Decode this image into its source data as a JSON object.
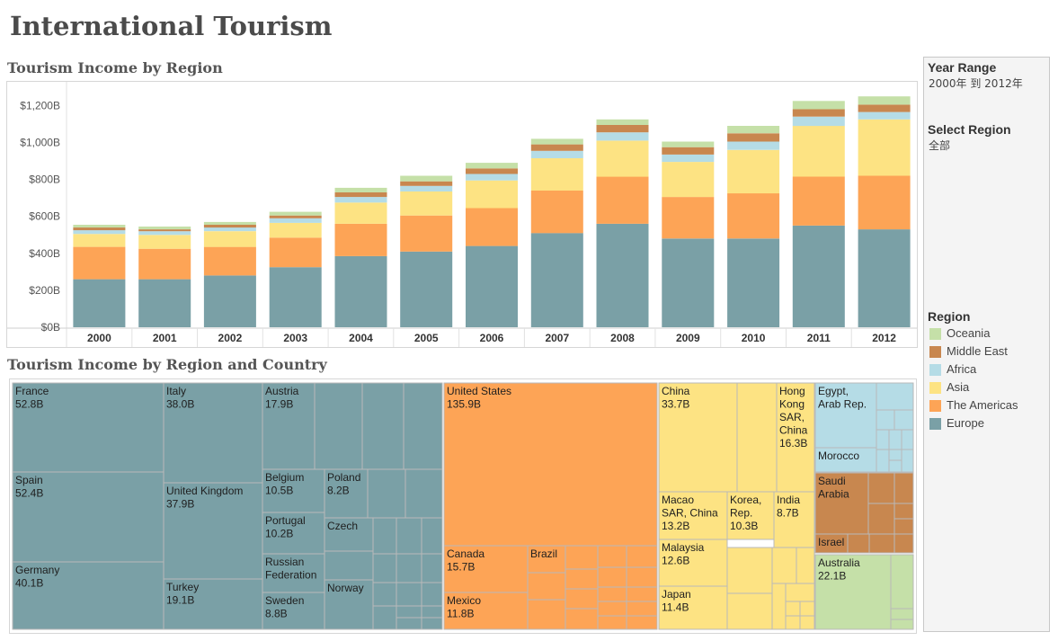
{
  "title": "International Tourism",
  "bar_section_title": "Tourism Income by Region",
  "tree_section_title": "Tourism Income by Region and Country",
  "filters": {
    "year_range_label": "Year Range",
    "year_range_value": "2000年 到 2012年",
    "region_label": "Select Region",
    "region_value": "全部"
  },
  "legend": {
    "title": "Region",
    "items": [
      {
        "label": "Oceania",
        "color": "#c5e0a8"
      },
      {
        "label": "Middle East",
        "color": "#c8874f"
      },
      {
        "label": "Africa",
        "color": "#b5dce6"
      },
      {
        "label": "Asia",
        "color": "#fde383"
      },
      {
        "label": "The Americas",
        "color": "#fda456"
      },
      {
        "label": "Europe",
        "color": "#7aa0a6"
      }
    ]
  },
  "chart_data": [
    {
      "type": "bar",
      "title": "Tourism Income by Region",
      "stacked": true,
      "categories": [
        "2000",
        "2001",
        "2002",
        "2003",
        "2004",
        "2005",
        "2006",
        "2007",
        "2008",
        "2009",
        "2010",
        "2011",
        "2012"
      ],
      "y_ticks": [
        "$0B",
        "$200B",
        "$400B",
        "$600B",
        "$800B",
        "$1,000B",
        "$1,200B"
      ],
      "ylim": [
        0,
        1280
      ],
      "series": [
        {
          "name": "Europe",
          "color": "#7aa0a6",
          "values": [
            260,
            260,
            280,
            325,
            385,
            410,
            440,
            510,
            560,
            480,
            480,
            550,
            530
          ]
        },
        {
          "name": "The Americas",
          "color": "#fda456",
          "values": [
            175,
            165,
            155,
            160,
            175,
            195,
            205,
            230,
            255,
            225,
            245,
            265,
            290
          ]
        },
        {
          "name": "Asia",
          "color": "#fde383",
          "values": [
            70,
            75,
            85,
            80,
            115,
            130,
            150,
            175,
            195,
            190,
            235,
            275,
            305
          ]
        },
        {
          "name": "Africa",
          "color": "#b5dce6",
          "values": [
            20,
            20,
            20,
            25,
            30,
            30,
            35,
            40,
            45,
            40,
            45,
            50,
            40
          ]
        },
        {
          "name": "Middle East",
          "color": "#c8874f",
          "values": [
            15,
            10,
            15,
            15,
            25,
            25,
            30,
            35,
            40,
            40,
            45,
            40,
            40
          ]
        },
        {
          "name": "Oceania",
          "color": "#c5e0a8",
          "values": [
            15,
            15,
            15,
            20,
            25,
            30,
            30,
            30,
            30,
            30,
            40,
            45,
            45
          ]
        }
      ]
    },
    {
      "type": "treemap",
      "title": "Tourism Income by Region and Country",
      "labeled_cells": [
        {
          "region": "Europe",
          "name": "France",
          "value": "52.8B"
        },
        {
          "region": "Europe",
          "name": "Spain",
          "value": "52.4B"
        },
        {
          "region": "Europe",
          "name": "Germany",
          "value": "40.1B"
        },
        {
          "region": "Europe",
          "name": "Italy",
          "value": "38.0B"
        },
        {
          "region": "Europe",
          "name": "United Kingdom",
          "value": "37.9B"
        },
        {
          "region": "Europe",
          "name": "Turkey",
          "value": "19.1B"
        },
        {
          "region": "Europe",
          "name": "Austria",
          "value": "17.9B"
        },
        {
          "region": "Europe",
          "name": "Belgium",
          "value": "10.5B"
        },
        {
          "region": "Europe",
          "name": "Portugal",
          "value": "10.2B"
        },
        {
          "region": "Europe",
          "name": "Russian Federation",
          "value": ""
        },
        {
          "region": "Europe",
          "name": "Sweden",
          "value": "8.8B"
        },
        {
          "region": "Europe",
          "name": "Poland",
          "value": "8.2B"
        },
        {
          "region": "Europe",
          "name": "Czech",
          "value": ""
        },
        {
          "region": "Europe",
          "name": "Norway",
          "value": ""
        },
        {
          "region": "The Americas",
          "name": "United States",
          "value": "135.9B"
        },
        {
          "region": "The Americas",
          "name": "Canada",
          "value": "15.7B"
        },
        {
          "region": "The Americas",
          "name": "Brazil",
          "value": ""
        },
        {
          "region": "The Americas",
          "name": "Mexico",
          "value": "11.8B"
        },
        {
          "region": "Asia",
          "name": "China",
          "value": "33.7B"
        },
        {
          "region": "Asia",
          "name": "Hong Kong SAR, China",
          "value": "16.3B"
        },
        {
          "region": "Asia",
          "name": "Macao SAR, China",
          "value": "13.2B"
        },
        {
          "region": "Asia",
          "name": "Korea, Rep.",
          "value": "10.3B"
        },
        {
          "region": "Asia",
          "name": "India",
          "value": "8.7B"
        },
        {
          "region": "Asia",
          "name": "Malaysia",
          "value": "12.6B"
        },
        {
          "region": "Asia",
          "name": "Japan",
          "value": "11.4B"
        },
        {
          "region": "Africa",
          "name": "Egypt, Arab Rep.",
          "value": ""
        },
        {
          "region": "Africa",
          "name": "Morocco",
          "value": ""
        },
        {
          "region": "Middle East",
          "name": "Saudi Arabia",
          "value": ""
        },
        {
          "region": "Middle East",
          "name": "Israel",
          "value": ""
        },
        {
          "region": "Oceania",
          "name": "Australia",
          "value": "22.1B"
        }
      ]
    }
  ]
}
